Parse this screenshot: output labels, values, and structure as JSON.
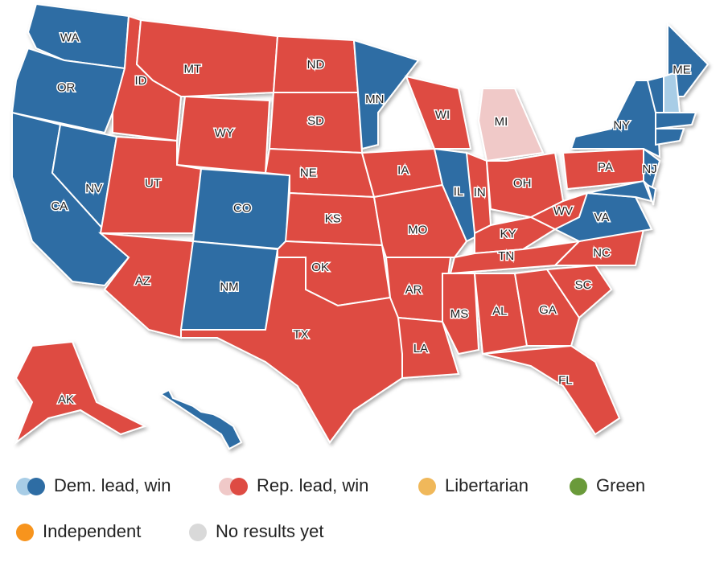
{
  "states": [
    {
      "label": "WA",
      "color": "#2e6da4"
    },
    {
      "label": "OR",
      "color": "#2e6da4"
    },
    {
      "label": "CA",
      "color": "#2e6da4"
    },
    {
      "label": "NV",
      "color": "#2e6da4"
    },
    {
      "label": "ID",
      "color": "#de4b43"
    },
    {
      "label": "MT",
      "color": "#de4b43"
    },
    {
      "label": "WY",
      "color": "#de4b43"
    },
    {
      "label": "UT",
      "color": "#de4b43"
    },
    {
      "label": "CO",
      "color": "#2e6da4"
    },
    {
      "label": "AZ",
      "color": "#de4b43"
    },
    {
      "label": "NM",
      "color": "#2e6da4"
    },
    {
      "label": "ND",
      "color": "#de4b43"
    },
    {
      "label": "SD",
      "color": "#de4b43"
    },
    {
      "label": "NE",
      "color": "#de4b43"
    },
    {
      "label": "KS",
      "color": "#de4b43"
    },
    {
      "label": "OK",
      "color": "#de4b43"
    },
    {
      "label": "TX",
      "color": "#de4b43"
    },
    {
      "label": "MN",
      "color": "#2e6da4"
    },
    {
      "label": "IA",
      "color": "#de4b43"
    },
    {
      "label": "MO",
      "color": "#de4b43"
    },
    {
      "label": "AR",
      "color": "#de4b43"
    },
    {
      "label": "LA",
      "color": "#de4b43"
    },
    {
      "label": "WI",
      "color": "#de4b43"
    },
    {
      "label": "IL",
      "color": "#2e6da4"
    },
    {
      "label": "MI",
      "color": "#f0c9c8"
    },
    {
      "label": "IN",
      "color": "#de4b43"
    },
    {
      "label": "OH",
      "color": "#de4b43"
    },
    {
      "label": "KY",
      "color": "#de4b43"
    },
    {
      "label": "TN",
      "color": "#de4b43"
    },
    {
      "label": "MS",
      "color": "#de4b43"
    },
    {
      "label": "AL",
      "color": "#de4b43"
    },
    {
      "label": "GA",
      "color": "#de4b43"
    },
    {
      "label": "FL",
      "color": "#de4b43"
    },
    {
      "label": "SC",
      "color": "#de4b43"
    },
    {
      "label": "NC",
      "color": "#de4b43"
    },
    {
      "label": "VA",
      "color": "#2e6da4"
    },
    {
      "label": "WV",
      "color": "#de4b43"
    },
    {
      "label": "PA",
      "color": "#de4b43"
    },
    {
      "label": "NJ",
      "color": "#2e6da4"
    },
    {
      "label": "NY",
      "color": "#2e6da4"
    },
    {
      "label": "ME",
      "color": "#2e6da4"
    },
    {
      "label": null,
      "color": "#a8cde6"
    },
    {
      "label": null,
      "color": "#2e6da4"
    },
    {
      "label": null,
      "color": "#2e6da4"
    },
    {
      "label": null,
      "color": "#2e6da4"
    },
    {
      "label": null,
      "color": "#2e6da4"
    },
    {
      "label": null,
      "color": "#2e6da4"
    },
    {
      "label": "AK",
      "color": "#de4b43"
    },
    {
      "label": null,
      "color": "#2e6da4"
    }
  ],
  "legend": [
    {
      "label": "Dem. lead, win",
      "colors": [
        "#a8cde6",
        "#2e6da4"
      ]
    },
    {
      "label": "Rep. lead, win",
      "colors": [
        "#f0c9c8",
        "#de4b43"
      ]
    },
    {
      "label": "Libertarian",
      "colors": [
        "#f0b85a"
      ]
    },
    {
      "label": "Green",
      "colors": [
        "#6a9a3a"
      ]
    },
    {
      "label": "Independent",
      "colors": [
        "#f7941d"
      ]
    },
    {
      "label": "No results yet",
      "colors": [
        "#d9d9d9"
      ]
    }
  ]
}
